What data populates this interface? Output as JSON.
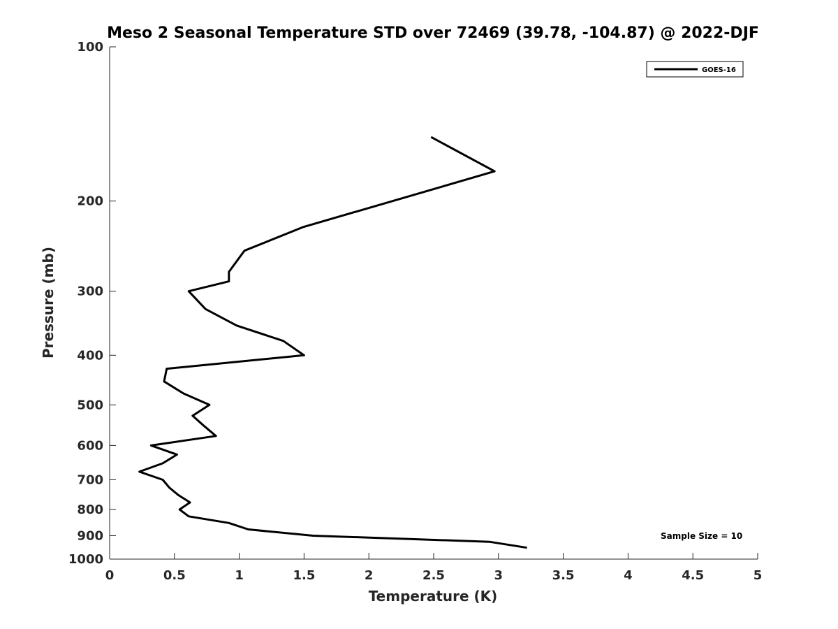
{
  "chart_data": {
    "type": "line",
    "title": "Meso 2 Seasonal Temperature STD over 72469 (39.78, -104.87) @ 2022-DJF",
    "xlabel": "Temperature (K)",
    "ylabel": "Pressure (mb)",
    "xlim": [
      0,
      5
    ],
    "ylim": [
      100,
      1000
    ],
    "y_scale": "log",
    "y_reversed": true,
    "x_ticks": [
      "0",
      "0.5",
      "1",
      "1.5",
      "2",
      "2.5",
      "3",
      "3.5",
      "4",
      "4.5",
      "5"
    ],
    "y_ticks": [
      "100",
      "200",
      "300",
      "400",
      "500",
      "600",
      "700",
      "800",
      "900",
      "1000"
    ],
    "grid": false,
    "legend_position": "top-right",
    "series": [
      {
        "name": "GOES-16",
        "color": "#000000",
        "points": [
          {
            "x": 2.48,
            "p": 150
          },
          {
            "x": 2.97,
            "p": 175
          },
          {
            "x": 1.49,
            "p": 225
          },
          {
            "x": 1.04,
            "p": 250
          },
          {
            "x": 0.92,
            "p": 275
          },
          {
            "x": 0.92,
            "p": 287
          },
          {
            "x": 0.61,
            "p": 300
          },
          {
            "x": 0.74,
            "p": 325
          },
          {
            "x": 0.98,
            "p": 350
          },
          {
            "x": 1.34,
            "p": 375
          },
          {
            "x": 1.5,
            "p": 400
          },
          {
            "x": 0.44,
            "p": 425
          },
          {
            "x": 0.42,
            "p": 450
          },
          {
            "x": 0.57,
            "p": 475
          },
          {
            "x": 0.77,
            "p": 500
          },
          {
            "x": 0.64,
            "p": 525
          },
          {
            "x": 0.73,
            "p": 550
          },
          {
            "x": 0.82,
            "p": 575
          },
          {
            "x": 0.32,
            "p": 600
          },
          {
            "x": 0.52,
            "p": 625
          },
          {
            "x": 0.41,
            "p": 650
          },
          {
            "x": 0.23,
            "p": 675
          },
          {
            "x": 0.41,
            "p": 700
          },
          {
            "x": 0.46,
            "p": 725
          },
          {
            "x": 0.53,
            "p": 750
          },
          {
            "x": 0.62,
            "p": 775
          },
          {
            "x": 0.54,
            "p": 800
          },
          {
            "x": 0.61,
            "p": 825
          },
          {
            "x": 0.92,
            "p": 850
          },
          {
            "x": 1.07,
            "p": 875
          },
          {
            "x": 1.57,
            "p": 900
          },
          {
            "x": 2.93,
            "p": 925
          },
          {
            "x": 3.22,
            "p": 950
          }
        ]
      }
    ],
    "annotations": [
      "Sample Size = 10"
    ]
  }
}
